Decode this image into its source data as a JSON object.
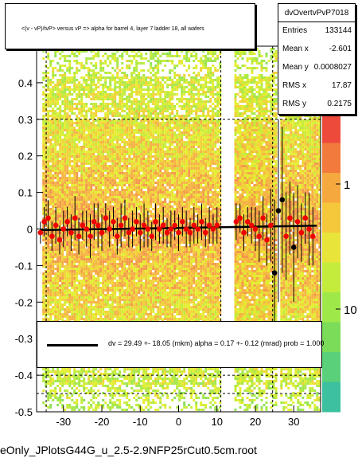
{
  "title": "<(v - vP)/tvP> versus   vP => alpha for barrel 4, layer 7 ladder 18, all wafers",
  "stats": {
    "name": "dvOvertvPvP7018",
    "rows": [
      {
        "key": "Entries",
        "value": "133144"
      },
      {
        "key": "Mean x",
        "value": "-2.601"
      },
      {
        "key": "Mean y",
        "value": "0.0008027"
      },
      {
        "key": "RMS x",
        "value": "17.87"
      },
      {
        "key": "RMS y",
        "value": "0.2175"
      }
    ]
  },
  "fit": {
    "text": "dv =   29.49 +- 18.05 (mkm) alpha =    0.17 +- 0.12 (mrad) prob = 1.000"
  },
  "footer": "eOnly_JPlotsG44G_u_2.5-2.9NFP25rCut0.5cm.root",
  "chart_data": {
    "type": "heatmap",
    "xlim": [
      -37,
      37
    ],
    "ylim": [
      -0.5,
      0.5
    ],
    "x_ticks": [
      "-30",
      "-20",
      "-10",
      "0",
      "10",
      "20",
      "30"
    ],
    "x_tick_values": [
      -30,
      -20,
      -10,
      0,
      10,
      20,
      30
    ],
    "y_ticks": [
      "-0.5",
      "-0.4",
      "-0.3",
      "-0.2",
      "-0.1",
      "0",
      "0.1",
      "0.2",
      "0.3",
      "0.4"
    ],
    "y_tick_values": [
      -0.5,
      -0.4,
      -0.3,
      -0.2,
      -0.1,
      0,
      0.1,
      0.2,
      0.3,
      0.4
    ],
    "z_scale": "log",
    "z_ticks": [
      "1",
      "10"
    ],
    "grid": true,
    "data_bands": [
      [
        -35.5,
        11.0
      ],
      [
        14.5,
        25.5
      ],
      [
        26.5,
        36.5
      ]
    ],
    "gaps": [
      [
        11.0,
        14.5
      ]
    ],
    "dashed_x": [
      -34.5,
      11.0,
      24.5
    ],
    "dashed_y": [
      0.3,
      -0.4,
      -0.45
    ],
    "profile_points": {
      "x": [
        -36,
        -35,
        -34,
        -33,
        -32,
        -31,
        -30,
        -29,
        -28,
        -27,
        -26,
        -25,
        -24,
        -23,
        -22,
        -21,
        -20,
        -19,
        -18,
        -17,
        -16,
        -15,
        -14,
        -13,
        -12,
        -11,
        -10,
        -9,
        -8,
        -7,
        -6,
        -5,
        -4,
        -3,
        -2,
        -1,
        0,
        1,
        2,
        3,
        4,
        5,
        6,
        7,
        8,
        9,
        10,
        15,
        16,
        17,
        18,
        19,
        20,
        21,
        22,
        23,
        24,
        25,
        26,
        27,
        28,
        29,
        30,
        31,
        32,
        33,
        34,
        35
      ],
      "y": [
        -0.01,
        0.02,
        0.03,
        -0.02,
        0.01,
        -0.03,
        0.0,
        0.02,
        -0.01,
        0.03,
        -0.02,
        0.01,
        0.0,
        -0.02,
        0.02,
        0.01,
        -0.01,
        0.03,
        0.0,
        0.02,
        -0.02,
        0.01,
        0.03,
        -0.01,
        0.0,
        0.02,
        -0.01,
        0.01,
        0.0,
        -0.02,
        0.02,
        0.0,
        0.01,
        -0.01,
        0.0,
        0.01,
        -0.01,
        0.02,
        0.0,
        -0.01,
        0.01,
        0.0,
        0.02,
        -0.01,
        0.01,
        0.0,
        0.01,
        0.02,
        0.03,
        -0.01,
        0.02,
        0.01,
        0.0,
        -0.02,
        0.03,
        -0.03,
        0.01,
        -0.12,
        0.05,
        0.08,
        -0.02,
        0.03,
        -0.05,
        0.02,
        -0.01,
        0.03,
        0.0,
        -0.02
      ],
      "err": [
        0.03,
        0.04,
        0.05,
        0.04,
        0.05,
        0.04,
        0.05,
        0.04,
        0.05,
        0.06,
        0.05,
        0.04,
        0.05,
        0.06,
        0.05,
        0.06,
        0.05,
        0.04,
        0.05,
        0.04,
        0.05,
        0.06,
        0.05,
        0.04,
        0.05,
        0.04,
        0.05,
        0.06,
        0.05,
        0.04,
        0.05,
        0.04,
        0.05,
        0.04,
        0.05,
        0.04,
        0.05,
        0.04,
        0.05,
        0.04,
        0.05,
        0.04,
        0.05,
        0.04,
        0.05,
        0.04,
        0.05,
        0.05,
        0.04,
        0.05,
        0.04,
        0.05,
        0.06,
        0.07,
        0.06,
        0.07,
        0.1,
        0.2,
        0.25,
        0.2,
        0.12,
        0.1,
        0.15,
        0.1,
        0.08,
        0.07,
        0.1,
        0.08
      ]
    },
    "fit_line": {
      "slope": 0.00017,
      "intercept": 0.003
    }
  }
}
